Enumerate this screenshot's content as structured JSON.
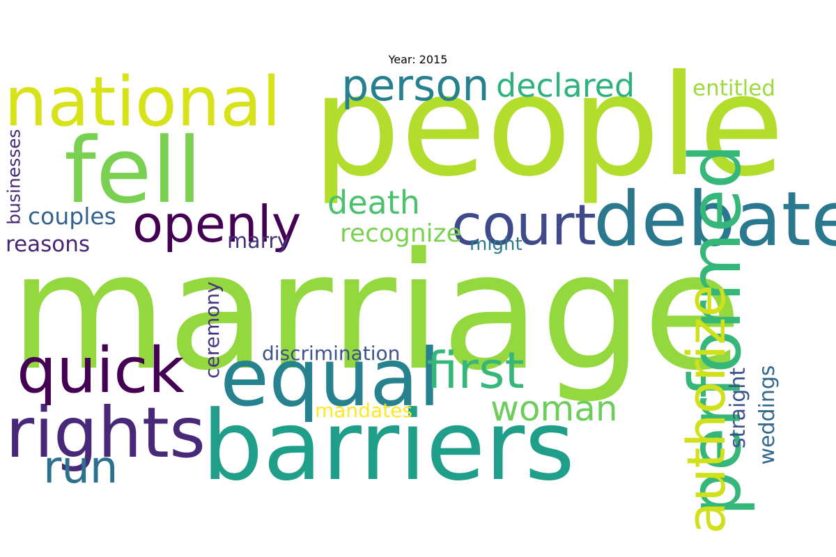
{
  "title": "Year: 2015",
  "colors": {
    "background": "#ffffff",
    "title": "#000000"
  },
  "words": [
    {
      "text": "marriage",
      "color": "#94d840"
    },
    {
      "text": "people",
      "color": "#b2dd2d"
    },
    {
      "text": "barriers",
      "color": "#1f9e89"
    },
    {
      "text": "national",
      "color": "#d8e219"
    },
    {
      "text": "fell",
      "color": "#7ad151"
    },
    {
      "text": "equal",
      "color": "#26828e"
    },
    {
      "text": "debate",
      "color": "#2a788e"
    },
    {
      "text": "rights",
      "color": "#482878"
    },
    {
      "text": "quick",
      "color": "#440154"
    },
    {
      "text": "first",
      "color": "#35b779"
    },
    {
      "text": "openly",
      "color": "#440154"
    },
    {
      "text": "court",
      "color": "#3e4a89"
    },
    {
      "text": "person",
      "color": "#27808e"
    },
    {
      "text": "run",
      "color": "#2c728e"
    },
    {
      "text": "woman",
      "color": "#6ccd5a"
    },
    {
      "text": "death",
      "color": "#4ac16d"
    },
    {
      "text": "declared",
      "color": "#2db27d"
    },
    {
      "text": "entitled",
      "color": "#9bd93c"
    },
    {
      "text": "couples",
      "color": "#33638d"
    },
    {
      "text": "recognize",
      "color": "#7ad151"
    },
    {
      "text": "marry",
      "color": "#46327e"
    },
    {
      "text": "might",
      "color": "#2a788e"
    },
    {
      "text": "reasons",
      "color": "#482475"
    },
    {
      "text": "discrimination",
      "color": "#3b528b"
    },
    {
      "text": "mandates",
      "color": "#fde725"
    },
    {
      "text": "performed",
      "color": "#35b779"
    },
    {
      "text": "authorize",
      "color": "#d0e11c"
    },
    {
      "text": "businesses",
      "color": "#482878"
    },
    {
      "text": "ceremony",
      "color": "#46327e"
    },
    {
      "text": "straight",
      "color": "#3b528b"
    },
    {
      "text": "weddings",
      "color": "#31688e"
    }
  ]
}
